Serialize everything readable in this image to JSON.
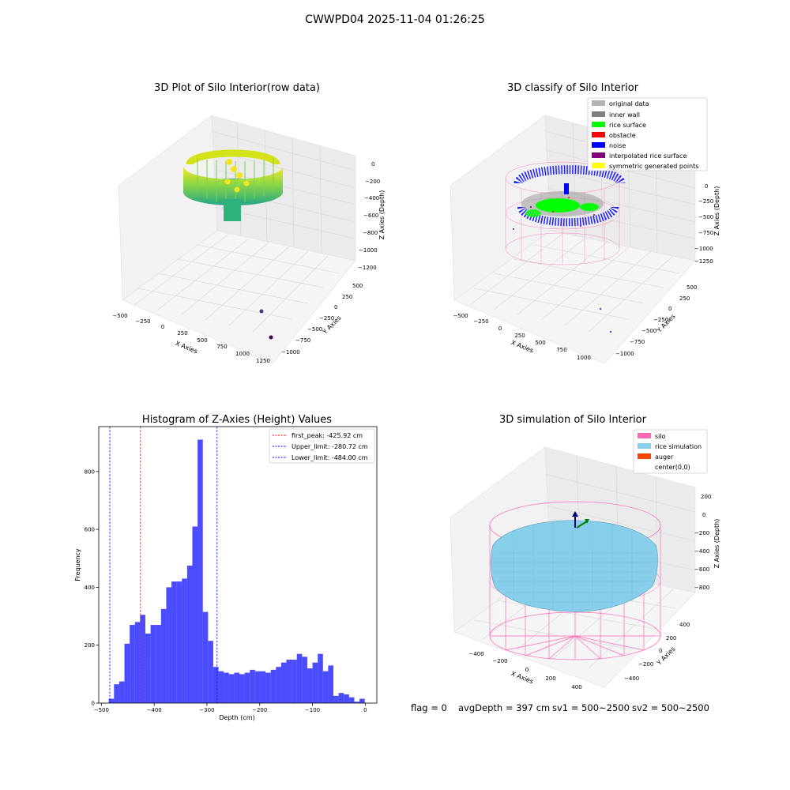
{
  "figure": {
    "suptitle": "CWWPD04 2025-11-04 01:26:25"
  },
  "panels": {
    "raw": {
      "title": "3D Plot of Silo Interior(row data)",
      "xlabel": "X Axies",
      "ylabel": "Y Axies",
      "zlabel": "Z Axies (Depth)",
      "xticks": [
        "−500",
        "−250",
        "0",
        "250",
        "500",
        "750",
        "1000",
        "1250"
      ],
      "yticks": [
        "500",
        "250",
        "0",
        "−250",
        "−500",
        "−750",
        "−1000"
      ],
      "zticks": [
        "0",
        "−200",
        "−400",
        "−600",
        "−800",
        "−1000",
        "−1200"
      ]
    },
    "classify": {
      "title": "3D classify of Silo Interior",
      "xlabel": "X Axies",
      "ylabel": "Y Axies",
      "zlabel": "Z Axies (Depth)",
      "xticks": [
        "−500",
        "−250",
        "0",
        "250",
        "500",
        "750",
        "1000"
      ],
      "yticks": [
        "500",
        "250",
        "0",
        "−250",
        "−500",
        "−750",
        "−1000"
      ],
      "zticks": [
        "0",
        "−250",
        "−500",
        "−750",
        "−1000",
        "−1250"
      ],
      "legend": [
        {
          "label": "original data",
          "color": "#b3b3b3"
        },
        {
          "label": "inner wall",
          "color": "#808080"
        },
        {
          "label": "rice surface",
          "color": "#00ff00"
        },
        {
          "label": "obstacle",
          "color": "#ff0000"
        },
        {
          "label": "noise",
          "color": "#0000ff"
        },
        {
          "label": "interpolated rice surface",
          "color": "#800080"
        },
        {
          "label": "symmetric generated points",
          "color": "#ffff00"
        }
      ]
    },
    "simulation": {
      "title": "3D simulation of Silo Interior",
      "xlabel": "X Axies",
      "ylabel": "Y Axies",
      "zlabel": "Z Axies (Depth)",
      "xticks": [
        "−400",
        "−200",
        "0",
        "200",
        "400"
      ],
      "yticks": [
        "400",
        "200",
        "0",
        "−200",
        "−400"
      ],
      "zticks": [
        "200",
        "0",
        "−200",
        "−400",
        "−600",
        "−800"
      ],
      "legend": [
        {
          "label": "silo",
          "color": "#ff69b4"
        },
        {
          "label": "rice simulation",
          "color": "#87ceeb"
        },
        {
          "label": "auger",
          "color": "#ff4500"
        },
        {
          "label": "center(0,0)",
          "color": ""
        }
      ]
    }
  },
  "chart_data": [
    {
      "type": "bar",
      "title": "Histogram of Z-Axies (Height) Values",
      "xlabel": "Depth (cm)",
      "ylabel": "Frequency",
      "bar_color": "#0000ff",
      "bin_start": -486,
      "bin_width": 9.9,
      "values": [
        15,
        65,
        75,
        205,
        270,
        280,
        305,
        240,
        270,
        270,
        325,
        400,
        420,
        420,
        430,
        475,
        610,
        910,
        315,
        215,
        125,
        110,
        105,
        100,
        105,
        100,
        105,
        115,
        110,
        110,
        105,
        115,
        125,
        140,
        150,
        150,
        170,
        160,
        120,
        140,
        170,
        110,
        130,
        25,
        35,
        30,
        20,
        5,
        15
      ],
      "xlim": [
        -505,
        22
      ],
      "ylim": [
        0,
        955
      ],
      "xticks": [
        -500,
        -400,
        -300,
        -200,
        -100,
        0
      ],
      "yticks": [
        0,
        200,
        400,
        600,
        800
      ],
      "vlines": [
        {
          "label": "first_peak: -425.92 cm",
          "x": -425.92,
          "color": "#ff0000"
        },
        {
          "label": "Upper_limit: -280.72 cm",
          "x": -280.72,
          "color": "#0000ff"
        },
        {
          "label": "Lower_limit: -484.00 cm",
          "x": -484.0,
          "color": "#0000ff"
        }
      ],
      "legend_position": "upper right"
    }
  ],
  "footer": {
    "flag": "flag = 0",
    "avg": "avgDepth = 397 cm",
    "sv1": "sv1 = 500~2500",
    "sv2": "sv2 = 500~2500"
  }
}
